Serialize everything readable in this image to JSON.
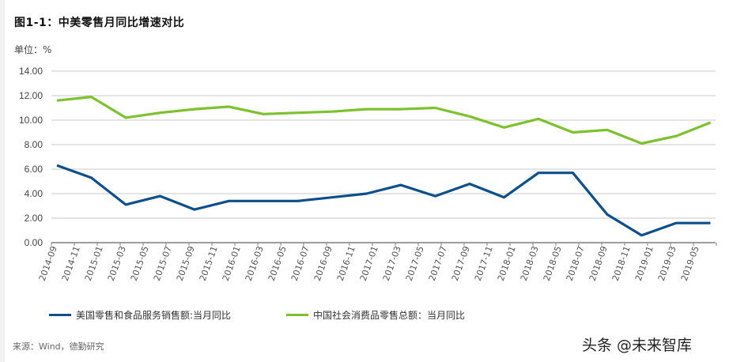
{
  "title": "图1-1：中美零售月同比增速对比",
  "unit_label": "单位：%",
  "source": "来源：Wind，德勤研究",
  "watermark": "头条 @未来智库",
  "colors": {
    "us_series": "#0d4f8b",
    "cn_series": "#7dc12f",
    "grid": "#c8c8c8",
    "axis": "#7f7f7f"
  },
  "chart_data": {
    "type": "line",
    "title": "图1-1：中美零售月同比增速对比",
    "xlabel": "",
    "ylabel": "单位：%",
    "ylim": [
      0,
      14
    ],
    "y_ticks": [
      "0.00",
      "2.00",
      "4.00",
      "6.00",
      "8.00",
      "10.00",
      "12.00",
      "14.00"
    ],
    "grid": true,
    "legend_position": "bottom",
    "x_tick_labels": [
      "2014-09",
      "2014-11",
      "2015-01",
      "2015-03",
      "2015-05",
      "2015-07",
      "2015-09",
      "2015-11",
      "2016-01",
      "2016-03",
      "2016-05",
      "2016-07",
      "2016-09",
      "2016-11",
      "2017-01",
      "2017-03",
      "2017-05",
      "2017-07",
      "2017-09",
      "2017-11",
      "2018-01",
      "2018-03",
      "2018-05",
      "2018-07",
      "2018-09",
      "2018-11",
      "2019-01",
      "2019-03",
      "2019-05"
    ],
    "x": [
      "2014-09",
      "2014-12",
      "2015-03",
      "2015-06",
      "2015-09",
      "2015-12",
      "2016-03",
      "2016-06",
      "2016-09",
      "2016-12",
      "2017-03",
      "2017-06",
      "2017-09",
      "2017-12",
      "2018-03",
      "2018-06",
      "2018-09",
      "2018-12",
      "2019-03",
      "2019-06"
    ],
    "series": [
      {
        "name": "美国零售和食品服务销售额:当月同比",
        "color": "#0d4f8b",
        "values": [
          6.3,
          5.3,
          3.1,
          3.8,
          2.7,
          3.4,
          3.4,
          3.4,
          3.7,
          4.0,
          4.7,
          3.8,
          4.8,
          3.7,
          5.7,
          5.7,
          2.3,
          0.6,
          1.6,
          1.6
        ]
      },
      {
        "name": "中国社会消费品零售总额：当月同比",
        "color": "#7dc12f",
        "values": [
          11.6,
          11.9,
          10.2,
          10.6,
          10.9,
          11.1,
          10.5,
          10.6,
          10.7,
          10.9,
          10.9,
          11.0,
          10.3,
          9.4,
          10.1,
          9.0,
          9.2,
          8.1,
          8.7,
          9.8
        ]
      }
    ]
  },
  "legend": {
    "items": [
      {
        "label": "美国零售和食品服务销售额:当月同比"
      },
      {
        "label": "中国社会消费品零售总额：当月同比"
      }
    ]
  }
}
